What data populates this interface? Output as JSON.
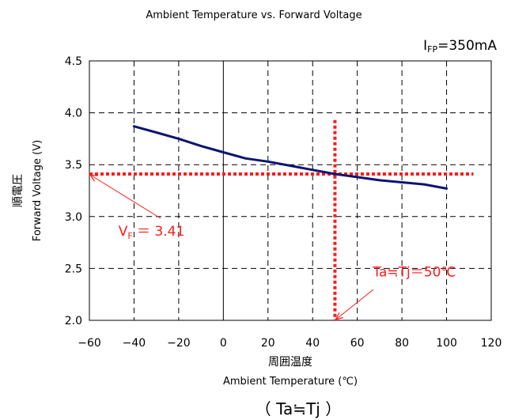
{
  "chart_data": {
    "type": "line",
    "title": "Ambient Temperature vs. Forward Voltage",
    "condition": {
      "prefix": "I",
      "sub": "FP",
      "suffix": "=350mA"
    },
    "xlabel_jp": "周囲温度",
    "xlabel": "Ambient Temperature (℃)",
    "ylabel_jp": "順電圧",
    "ylabel": "Forward Voltage (V)",
    "xlim": [
      -60,
      120
    ],
    "ylim": [
      2.0,
      4.5
    ],
    "xticks": [
      -60,
      -40,
      -20,
      0,
      20,
      40,
      60,
      80,
      100,
      120
    ],
    "yticks": [
      2.0,
      2.5,
      3.0,
      3.5,
      4.0,
      4.5
    ],
    "xtick_labels": [
      "−60",
      "−40",
      "−20",
      "0",
      "20",
      "40",
      "60",
      "80",
      "100",
      "120"
    ],
    "ytick_labels": [
      "2.0",
      "2.5",
      "3.0",
      "3.5",
      "4.0",
      "4.5"
    ],
    "grid": true,
    "series": [
      {
        "color": "#0d1470",
        "x": [
          -40,
          -30,
          -20,
          -10,
          0,
          10,
          20,
          30,
          40,
          50,
          60,
          70,
          80,
          90,
          100
        ],
        "y": [
          3.87,
          3.81,
          3.75,
          3.68,
          3.62,
          3.56,
          3.53,
          3.49,
          3.45,
          3.41,
          3.38,
          3.35,
          3.33,
          3.31,
          3.27
        ]
      }
    ],
    "reference_lines": {
      "color": "#ff1a1a",
      "vertical_x": 50,
      "vertical_y_top": 3.93,
      "horizontal_y": 3.41,
      "horizontal_x_end": 112
    },
    "annotations": [
      {
        "prefix": "V",
        "sub": "F",
        "suffix": " ＝ 3.41",
        "x": -47,
        "y": 2.86,
        "arrow_to_x": -60,
        "arrow_to_y": 3.41
      },
      {
        "text": "Ta≒Tj＝50℃",
        "x": 67,
        "y": 2.47,
        "arrow_to_x": 50,
        "arrow_to_y": 2.0
      }
    ],
    "footnote": "（ Ta≒Tj ）"
  }
}
